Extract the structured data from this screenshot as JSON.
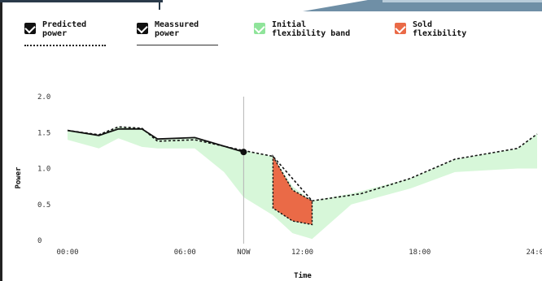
{
  "legend": {
    "predicted": {
      "label": "Predicted\npower",
      "icon": "check-icon"
    },
    "measured": {
      "label": "Meassured\npower",
      "icon": "check-icon"
    },
    "initial_band": {
      "label": "Initial\nflexibility band",
      "icon": "check-icon"
    },
    "sold": {
      "label": "Sold\nflexibility",
      "icon": "check-icon"
    }
  },
  "colors": {
    "band": "#d7f7d9",
    "band_checkbox": "#8fe49a",
    "sold": "#ea6a47",
    "line": "#111111",
    "now_line": "#b5b5b5"
  },
  "chart_data": {
    "type": "line",
    "xlabel": "Time",
    "ylabel": "Power",
    "x_ticks": [
      {
        "x": 0,
        "label": "00:00"
      },
      {
        "x": 6,
        "label": "06:00"
      },
      {
        "x": 9,
        "label": "NOW"
      },
      {
        "x": 12,
        "label": "12:00"
      },
      {
        "x": 18,
        "label": "18:00"
      },
      {
        "x": 24,
        "label": "24:00"
      }
    ],
    "y_ticks": [
      {
        "y": 0,
        "label": "0"
      },
      {
        "y": 0.5,
        "label": "0.5"
      },
      {
        "y": 1.0,
        "label": "1.0"
      },
      {
        "y": 1.5,
        "label": "1.5"
      },
      {
        "y": 2.0,
        "label": "2.0"
      }
    ],
    "xlim": [
      0,
      24
    ],
    "ylim": [
      0,
      2.0
    ],
    "now_x": 9,
    "series": [
      {
        "name": "Meassured power",
        "style": "solid",
        "x": [
          0,
          1.6,
          2.6,
          3.8,
          4.6,
          6.5,
          9
        ],
        "y": [
          1.53,
          1.46,
          1.55,
          1.55,
          1.41,
          1.43,
          1.23
        ]
      },
      {
        "name": "Predicted power",
        "style": "dotted",
        "x": [
          0,
          1.6,
          2.6,
          3.8,
          4.6,
          6.5,
          9,
          10.5,
          12.5,
          15,
          17.5,
          19.8,
          23,
          24
        ],
        "y": [
          1.53,
          1.47,
          1.58,
          1.56,
          1.38,
          1.4,
          1.25,
          1.17,
          0.55,
          0.65,
          0.86,
          1.13,
          1.28,
          1.48
        ]
      }
    ],
    "band": {
      "name": "Initial flexibility band",
      "x": [
        0,
        1.6,
        2.6,
        3.8,
        4.6,
        6.5,
        8,
        9,
        10.5,
        11.5,
        12.5,
        14.5,
        17.5,
        19.8,
        23,
        24
      ],
      "upper": [
        1.53,
        1.47,
        1.58,
        1.56,
        1.4,
        1.42,
        1.3,
        1.25,
        1.17,
        0.75,
        0.55,
        0.65,
        0.86,
        1.13,
        1.28,
        1.48
      ],
      "lower": [
        1.4,
        1.28,
        1.42,
        1.3,
        1.28,
        1.28,
        0.95,
        0.6,
        0.35,
        0.1,
        0.02,
        0.5,
        0.72,
        0.95,
        1.0,
        1.0
      ]
    },
    "sold_flexibility": {
      "name": "Sold flexibility",
      "x": [
        10.5,
        11.5,
        12.5
      ],
      "upper": [
        1.17,
        0.7,
        0.55
      ],
      "lower": [
        0.45,
        0.27,
        0.22
      ]
    },
    "marker": {
      "x": 9,
      "y": 1.23
    }
  }
}
